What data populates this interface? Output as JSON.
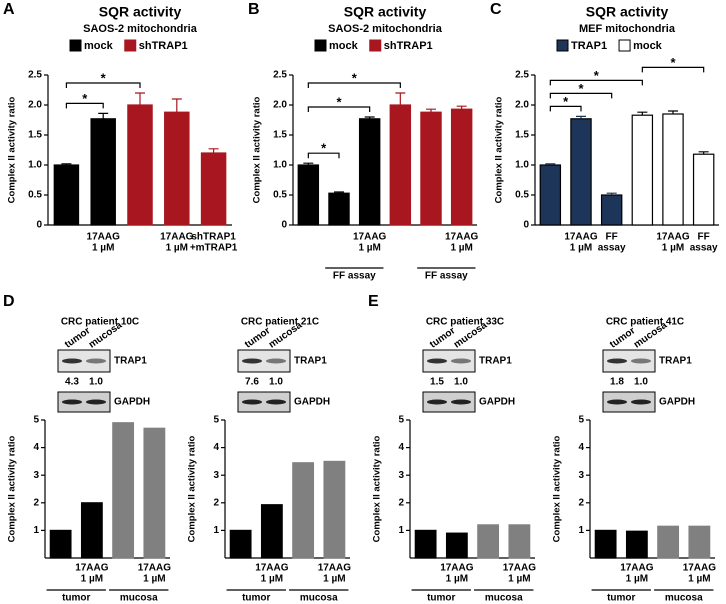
{
  "chart_data": [
    {
      "type": "bar",
      "panel": "A",
      "title": "SQR activity",
      "subtitle": "SAOS-2 mitochondria",
      "ylabel": "Complex II activity ratio",
      "categories": [
        null,
        [
          "17AAG",
          "1 µM"
        ],
        null,
        [
          "17AAG",
          "1 µM"
        ],
        [
          "shTRAP1",
          "+mTRAP1"
        ]
      ],
      "series": [
        {
          "name": "mock",
          "color": "#000000",
          "values": [
            1.0,
            1.77,
            null,
            null,
            null
          ],
          "errors": [
            0.02,
            0.09,
            null,
            null,
            null
          ]
        },
        {
          "name": "shTRAP1",
          "color": "#a8161f",
          "values": [
            null,
            null,
            2.0,
            1.88,
            1.2
          ],
          "errors": [
            null,
            null,
            0.2,
            0.22,
            0.07
          ]
        }
      ],
      "ylim": [
        0,
        2.5
      ],
      "yticks": [
        0,
        0.5,
        {
          "value": 1,
          "label": "1.0"
        },
        1.5,
        {
          "value": 2,
          "label": "2.0"
        },
        2.5
      ],
      "significance": [
        {
          "label": "*",
          "pair": [
            0,
            1
          ]
        },
        {
          "label": "*",
          "pair": [
            0,
            2
          ]
        }
      ]
    },
    {
      "type": "bar",
      "panel": "B",
      "title": "SQR activity",
      "subtitle": "SAOS-2 mitochondria",
      "ylabel": "Complex II activity ratio",
      "categories": [
        null,
        null,
        [
          "17AAG",
          "1 µM"
        ],
        null,
        null,
        [
          "17AAG",
          "1 µM"
        ]
      ],
      "series": [
        {
          "name": "mock",
          "color": "#000000",
          "values": [
            1.0,
            0.53,
            1.77,
            null,
            null,
            null
          ],
          "errors": [
            0.03,
            0.02,
            0.03,
            null,
            null,
            null
          ]
        },
        {
          "name": "shTRAP1",
          "color": "#a8161f",
          "values": [
            null,
            null,
            null,
            2.0,
            1.88,
            1.93
          ],
          "errors": [
            null,
            null,
            null,
            0.2,
            0.05,
            0.05
          ]
        }
      ],
      "ylim": [
        0,
        2.5
      ],
      "yticks": [
        0,
        0.5,
        {
          "value": 1,
          "label": "1.0"
        },
        1.5,
        {
          "value": 2,
          "label": "2.0"
        },
        2.5
      ],
      "groups": [
        {
          "label": "FF assay",
          "span": [
            1,
            2
          ]
        },
        {
          "label": "FF assay",
          "span": [
            4,
            5
          ]
        }
      ],
      "significance": [
        {
          "label": "*",
          "pair": [
            0,
            1
          ]
        },
        {
          "label": "*",
          "pair": [
            0,
            2
          ]
        },
        {
          "label": "*",
          "pair": [
            0,
            3
          ]
        }
      ]
    },
    {
      "type": "bar",
      "panel": "C",
      "title": "SQR activity",
      "subtitle": "MEF mitochondria",
      "ylabel": "Complex II activity ratio",
      "categories": [
        null,
        [
          "17AAG",
          "1 µM"
        ],
        [
          "FF",
          "assay"
        ],
        null,
        [
          "17AAG",
          "1 µM"
        ],
        [
          "FF",
          "assay"
        ]
      ],
      "edgecolor": "#000000",
      "series": [
        {
          "name": "TRAP1",
          "color": "#1c3558",
          "values": [
            1.0,
            1.77,
            0.5,
            null,
            null,
            null
          ],
          "errors": [
            0.02,
            0.04,
            0.03,
            null,
            null,
            null
          ]
        },
        {
          "name": "mock",
          "color": "#ffffff",
          "values": [
            null,
            null,
            null,
            1.83,
            1.85,
            1.18
          ],
          "errors": [
            null,
            null,
            null,
            0.05,
            0.05,
            0.04
          ]
        }
      ],
      "ylim": [
        0,
        2.5
      ],
      "yticks": [
        0,
        0.5,
        {
          "value": 1,
          "label": "1.0"
        },
        1.5,
        {
          "value": 2,
          "label": "2.0"
        },
        2.5
      ],
      "significance": [
        {
          "label": "*",
          "pair": [
            0,
            1
          ]
        },
        {
          "label": "*",
          "pair": [
            0,
            2
          ]
        },
        {
          "label": "*",
          "pair": [
            0,
            3
          ]
        },
        {
          "label": "*",
          "pair": [
            3,
            5
          ]
        }
      ]
    },
    {
      "type": "bar",
      "panel": "D",
      "title": "CRC patient 10C",
      "ylabel": "Complex II activity ratio",
      "blot": {
        "lanes": [
          "tumor",
          "mucosa"
        ],
        "bands": [
          "TRAP1",
          "GAPDH"
        ],
        "ratios": [
          4.3,
          {
            "value": 1,
            "label": "1.0"
          }
        ]
      },
      "categories": [
        null,
        [
          "17AAG",
          "1 µM"
        ],
        null,
        [
          "17AAG",
          "1 µM"
        ]
      ],
      "values": [
        1.0,
        2.0,
        4.9,
        4.7
      ],
      "colors": [
        "#000000",
        "#000000",
        "#808080",
        "#808080"
      ],
      "ylim": [
        0,
        5
      ],
      "yticks": [
        1,
        2,
        3,
        4,
        5
      ],
      "groups": [
        {
          "label": "tumor",
          "span": [
            0,
            1
          ]
        },
        {
          "label": "mucosa",
          "span": [
            2,
            3
          ]
        }
      ]
    },
    {
      "type": "bar",
      "title": "CRC patient 21C",
      "ylabel": "Complex II activity ratio",
      "blot": {
        "lanes": [
          "tumor",
          "mucosa"
        ],
        "bands": [
          "TRAP1",
          "GAPDH"
        ],
        "ratios": [
          7.6,
          {
            "value": 1,
            "label": "1.0"
          }
        ]
      },
      "categories": [
        null,
        [
          "17AAG",
          "1 µM"
        ],
        null,
        [
          "17AAG",
          "1 µM"
        ]
      ],
      "values": [
        1.0,
        1.93,
        3.45,
        3.5
      ],
      "colors": [
        "#000000",
        "#000000",
        "#808080",
        "#808080"
      ],
      "ylim": [
        0,
        5
      ],
      "yticks": [
        1,
        2,
        3,
        4,
        5
      ],
      "groups": [
        {
          "label": "tumor",
          "span": [
            0,
            1
          ]
        },
        {
          "label": "mucosa",
          "span": [
            2,
            3
          ]
        }
      ]
    },
    {
      "type": "bar",
      "panel": "E",
      "title": "CRC patient 33C",
      "ylabel": "Complex II activity ratio",
      "blot": {
        "lanes": [
          "tumor",
          "mucosa"
        ],
        "bands": [
          "TRAP1",
          "GAPDH"
        ],
        "ratios": [
          1.5,
          {
            "value": 1,
            "label": "1.0"
          }
        ]
      },
      "categories": [
        null,
        [
          "17AAG",
          "1 µM"
        ],
        null,
        [
          "17AAG",
          "1 µM"
        ]
      ],
      "values": [
        1.0,
        0.9,
        1.2,
        1.2
      ],
      "colors": [
        "#000000",
        "#000000",
        "#808080",
        "#808080"
      ],
      "ylim": [
        0,
        5
      ],
      "yticks": [
        1,
        2,
        3,
        4,
        5
      ],
      "groups": [
        {
          "label": "tumor",
          "span": [
            0,
            1
          ]
        },
        {
          "label": "mucosa",
          "span": [
            2,
            3
          ]
        }
      ]
    },
    {
      "type": "bar",
      "title": "CRC patient 41C",
      "ylabel": "Complex II activity ratio",
      "blot": {
        "lanes": [
          "tumor",
          "mucosa"
        ],
        "bands": [
          "TRAP1",
          "GAPDH"
        ],
        "ratios": [
          1.8,
          {
            "value": 1,
            "label": "1.0"
          }
        ]
      },
      "categories": [
        null,
        [
          "17AAG",
          "1 µM"
        ],
        null,
        [
          "17AAG",
          "1 µM"
        ]
      ],
      "values": [
        1.0,
        0.97,
        1.15,
        1.15
      ],
      "colors": [
        "#000000",
        "#000000",
        "#808080",
        "#808080"
      ],
      "ylim": [
        0,
        5
      ],
      "yticks": [
        1,
        2,
        3,
        4,
        5
      ],
      "groups": [
        {
          "label": "tumor",
          "span": [
            0,
            1
          ]
        },
        {
          "label": "mucosa",
          "span": [
            2,
            3
          ]
        }
      ]
    }
  ]
}
